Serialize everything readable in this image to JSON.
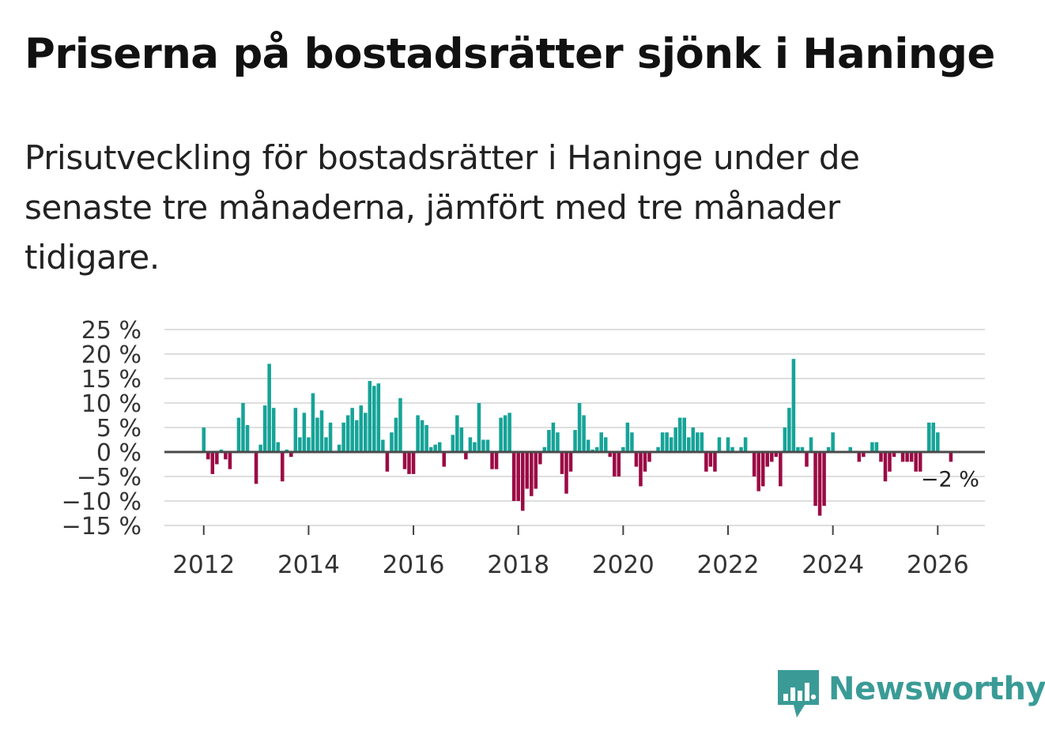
{
  "header": {
    "title": "Priserna på bostadsrätter sjönk i Haninge",
    "subtitle": "Prisutveckling för bostadsrätter i Haninge under de senaste tre månaderna, jämfört med tre månader tidigare."
  },
  "brand": {
    "name": "Newsworthy",
    "color": "#3a9b96",
    "icon": "newsworthy-logo-icon"
  },
  "colors": {
    "positive": "#16a398",
    "negative": "#9b0a45",
    "grid": "#dedede",
    "zero": "#4a4a4a"
  },
  "chart_data": {
    "type": "bar",
    "title": "Priserna på bostadsrätter sjönk i Haninge",
    "xlabel": "",
    "ylabel": "",
    "ylim": [
      -15,
      25
    ],
    "xlim": [
      2011.25,
      2026.9
    ],
    "grid": true,
    "y_ticks": [
      25,
      20,
      15,
      10,
      5,
      0,
      -5,
      -10,
      -15
    ],
    "y_tick_labels": [
      "25 %",
      "20 %",
      "15 %",
      "10 %",
      "5 %",
      "0 %",
      "−5 %",
      "−10 %",
      "−15 %"
    ],
    "x_ticks": [
      2012,
      2014,
      2016,
      2018,
      2020,
      2022,
      2024,
      2026
    ],
    "x_tick_labels": [
      "2012",
      "2014",
      "2016",
      "2018",
      "2020",
      "2022",
      "2024",
      "2026"
    ],
    "last_value_label": "−2 %",
    "start": 2012.0,
    "step_months": 1,
    "series": [
      {
        "name": "Prisutveckling",
        "values": [
          5,
          -1.5,
          -4.5,
          -2.5,
          0.5,
          -1.5,
          -3.5,
          0,
          7,
          10,
          5.5,
          0,
          -6.5,
          1.5,
          9.5,
          18,
          9,
          2,
          -6,
          0.5,
          -1,
          9,
          3,
          8,
          3,
          12,
          7,
          8.5,
          3,
          6,
          0,
          1.5,
          6,
          7.5,
          9,
          6.5,
          9.5,
          8,
          14.5,
          13.5,
          14,
          2.5,
          -4,
          4,
          7,
          11,
          -3.5,
          -4.5,
          -4.5,
          7.5,
          6.5,
          5.5,
          1,
          1.5,
          2,
          -3,
          0,
          3.5,
          7.5,
          5,
          -1.5,
          3,
          2,
          10,
          2.5,
          2.5,
          -3.5,
          -3.5,
          7,
          7.5,
          8,
          -10,
          -10,
          -12,
          -7.5,
          -9,
          -7.5,
          -2.5,
          1,
          4.5,
          6,
          4,
          -4.5,
          -8.5,
          -4,
          4.5,
          10,
          7.5,
          2.5,
          0.5,
          1,
          4,
          3,
          -1,
          -5,
          -5,
          1,
          6,
          4,
          -3,
          -7,
          -4,
          -2,
          0,
          1,
          4,
          4,
          3,
          5,
          7,
          7,
          3,
          5,
          4,
          4,
          -4,
          -3,
          -4,
          3,
          0,
          3,
          1,
          0,
          1,
          3,
          0,
          -5,
          -8,
          -7,
          -3,
          -2,
          -1,
          -7,
          5,
          9,
          19,
          1,
          1,
          -3,
          3,
          -11,
          -13,
          -11,
          1,
          4,
          0,
          0,
          0,
          1,
          0,
          -2,
          -1,
          0,
          2,
          2,
          -2,
          -6,
          -4,
          -1,
          0,
          -2,
          -2,
          -2,
          -4,
          -4,
          0,
          6,
          6,
          4,
          0,
          0,
          -2
        ]
      }
    ]
  }
}
